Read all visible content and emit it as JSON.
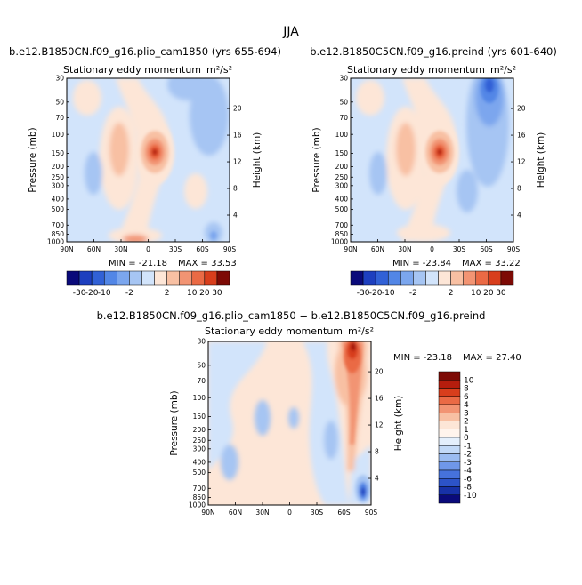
{
  "figure_title": "JJA",
  "chart_data": [
    {
      "type": "contour",
      "run_title": "b.e12.B1850CN.f09_g16.plio_cam1850 (yrs 655-694)",
      "subtitle": "Stationary eddy momentum",
      "units": "m²/s²",
      "x_tick_labels": [
        "90N",
        "60N",
        "30N",
        "0",
        "30S",
        "60S",
        "90S"
      ],
      "x_range": [
        90,
        -90
      ],
      "y_label": "Pressure (mb)",
      "y_tick_labels": [
        "30",
        "50",
        "70",
        "100",
        "150",
        "200",
        "250",
        "300",
        "400",
        "500",
        "700",
        "850",
        "1000"
      ],
      "y_range_mb": [
        30,
        1000
      ],
      "y2_label": "Height (km)",
      "y2_tick_labels": [
        "20",
        "16",
        "12",
        "8",
        "4"
      ],
      "min_label": "MIN = ",
      "min": "-21.18",
      "max_label": "MAX = ",
      "max": "33.53",
      "colorbar_labels": [
        "-30",
        "-20",
        "-10",
        "-2",
        "2",
        "10",
        "20",
        "30"
      ],
      "features": [
        {
          "lat": -5,
          "p_mb": 150,
          "value": 33.53,
          "label": "maximum"
        },
        {
          "lat": 30,
          "p_mb": 150,
          "value": 8,
          "label": "positive lobe"
        },
        {
          "lat": -40,
          "p_mb": 100,
          "value": -6,
          "label": "negative lobe"
        }
      ]
    },
    {
      "type": "contour",
      "run_title": "b.e12.B1850C5CN.f09_g16.preind (yrs 601-640)",
      "subtitle": "Stationary eddy momentum",
      "units": "m²/s²",
      "x_tick_labels": [
        "90N",
        "60N",
        "30N",
        "0",
        "30S",
        "60S",
        "90S"
      ],
      "x_range": [
        90,
        -90
      ],
      "y_label": "Pressure (mb)",
      "y_tick_labels": [
        "30",
        "50",
        "70",
        "100",
        "150",
        "200",
        "250",
        "300",
        "400",
        "500",
        "700",
        "850",
        "1000"
      ],
      "y_range_mb": [
        30,
        1000
      ],
      "y2_label": "Height (km)",
      "y2_tick_labels": [
        "20",
        "16",
        "12",
        "8",
        "4"
      ],
      "min_label": "MIN = ",
      "min": "-23.84",
      "max_label": "MAX = ",
      "max": "33.22",
      "colorbar_labels": [
        "-30",
        "-20",
        "-10",
        "-2",
        "2",
        "10",
        "20",
        "30"
      ],
      "features": [
        {
          "lat": -5,
          "p_mb": 150,
          "value": 33.22,
          "label": "maximum"
        },
        {
          "lat": 30,
          "p_mb": 150,
          "value": 8,
          "label": "positive lobe"
        },
        {
          "lat": -60,
          "p_mb": 40,
          "value": -23.84,
          "label": "minimum"
        }
      ]
    },
    {
      "type": "contour",
      "run_title": "b.e12.B1850CN.f09_g16.plio_cam1850 − b.e12.B1850C5CN.f09_g16.preind",
      "subtitle": "Stationary eddy momentum",
      "units": "m²/s²",
      "x_tick_labels": [
        "90N",
        "60N",
        "30N",
        "0",
        "30S",
        "60S",
        "90S"
      ],
      "x_range": [
        90,
        -90
      ],
      "y_label": "Pressure (mb)",
      "y_tick_labels": [
        "30",
        "50",
        "70",
        "100",
        "150",
        "200",
        "250",
        "300",
        "400",
        "500",
        "700",
        "850",
        "1000"
      ],
      "y_range_mb": [
        30,
        1000
      ],
      "y2_label": "Height (km)",
      "y2_tick_labels": [
        "20",
        "16",
        "12",
        "8",
        "4"
      ],
      "min_label": "MIN = ",
      "min": "-23.18",
      "max_label": "MAX = ",
      "max": "27.40",
      "colorbar_labels": [
        "10",
        "8",
        "6",
        "4",
        "3",
        "2",
        "1",
        "0",
        "-1",
        "-2",
        "-3",
        "-4",
        "-6",
        "-8",
        "-10"
      ],
      "features": [
        {
          "lat": -60,
          "p_mb": 40,
          "value": 27.4,
          "label": "maximum"
        },
        {
          "lat": -85,
          "p_mb": 800,
          "value": -23.18,
          "label": "minimum"
        }
      ]
    }
  ],
  "colors": {
    "cb12": [
      "#0a0a7a",
      "#1d3fbf",
      "#3161d6",
      "#5286e6",
      "#7ba6ee",
      "#a6c5f3",
      "#d2e4fb",
      "#fde6d7",
      "#f8c0a3",
      "#f29473",
      "#ea6a45",
      "#d83e1c",
      "#7d0a05"
    ],
    "cb16": [
      "#7d0a05",
      "#b51d0d",
      "#d83e1c",
      "#ea6a45",
      "#f29473",
      "#f8c0a3",
      "#fde6d7",
      "#fff4ed",
      "#e4effc",
      "#c2d9f7",
      "#9bbcf1",
      "#6f97e9",
      "#4672dc",
      "#2c53c8",
      "#1731a7",
      "#0a0a7a"
    ],
    "field": {
      "bg": "#d2e4fb",
      "lpos": "#fde6d7",
      "pos": "#f8c0a3",
      "mpos": "#f29473",
      "spos": "#ea6a45",
      "vpos": "#d83e1c",
      "xpos": "#a3160a",
      "lneg": "#a6c5f3",
      "neg": "#7ba6ee",
      "mneg": "#5286e6",
      "sneg": "#3161d6",
      "vneg": "#1d3fbf"
    }
  }
}
